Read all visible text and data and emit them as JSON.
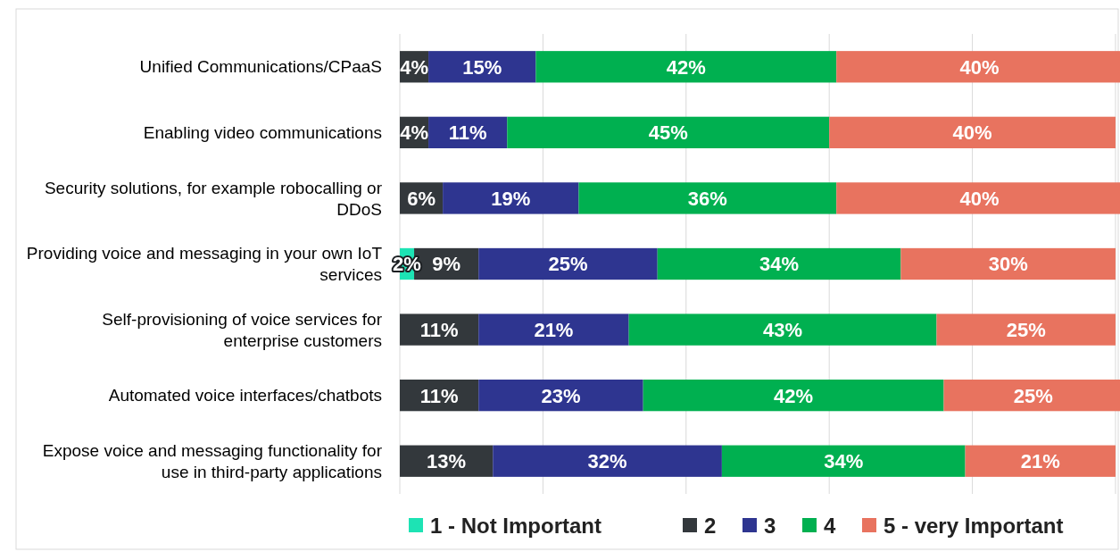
{
  "chart_data": {
    "type": "bar",
    "orientation": "horizontal",
    "stacked": true,
    "grid": "x",
    "legend": "bottom",
    "xlim": [
      0,
      101
    ],
    "xticks": [
      {
        "value": 0,
        "label": null
      },
      {
        "value": 20,
        "label": null
      },
      {
        "value": 40,
        "label": null
      },
      {
        "value": 60,
        "label": null
      },
      {
        "value": 80,
        "label": null
      },
      {
        "value": 100,
        "label": null
      }
    ],
    "tick_labels": "y",
    "categories": [
      "Unified Communications/CPaaS",
      "Enabling video communications",
      "Security solutions, for example robocalling or DDoS",
      "Providing voice and messaging in your own IoT services",
      "Self-provisioning of voice services for enterprise customers",
      "Automated voice interfaces/chatbots",
      "Expose voice and messaging functionality for use in third-party applications"
    ],
    "series": [
      {
        "name": "1 - Not Important",
        "color": "#1de3b4",
        "values": [
          null,
          null,
          null,
          2,
          null,
          null,
          null
        ],
        "value_labels": [
          null,
          null,
          null,
          "2%",
          null,
          null,
          null
        ]
      },
      {
        "name": "2",
        "color": "#33383c",
        "values": [
          4,
          4,
          6,
          9,
          11,
          11,
          13
        ],
        "value_labels": [
          "4%",
          "4%",
          "6%",
          "9%",
          "11%",
          "11%",
          "13%"
        ]
      },
      {
        "name": "3",
        "color": "#2e3590",
        "values": [
          15,
          11,
          19,
          25,
          21,
          23,
          32
        ],
        "value_labels": [
          "15%",
          "11%",
          "19%",
          "25%",
          "21%",
          "23%",
          "32%"
        ]
      },
      {
        "name": "4",
        "color": "#00b050",
        "values": [
          42,
          45,
          36,
          34,
          43,
          42,
          34
        ],
        "value_labels": [
          "42%",
          "45%",
          "36%",
          "34%",
          "43%",
          "42%",
          "34%"
        ]
      },
      {
        "name": "5 - very Important",
        "color": "#e8735f",
        "values": [
          40,
          40,
          40,
          30,
          25,
          25,
          21
        ],
        "value_labels": [
          "40%",
          "40%",
          "40%",
          "30%",
          "25%",
          "25%",
          "21%"
        ]
      }
    ]
  }
}
